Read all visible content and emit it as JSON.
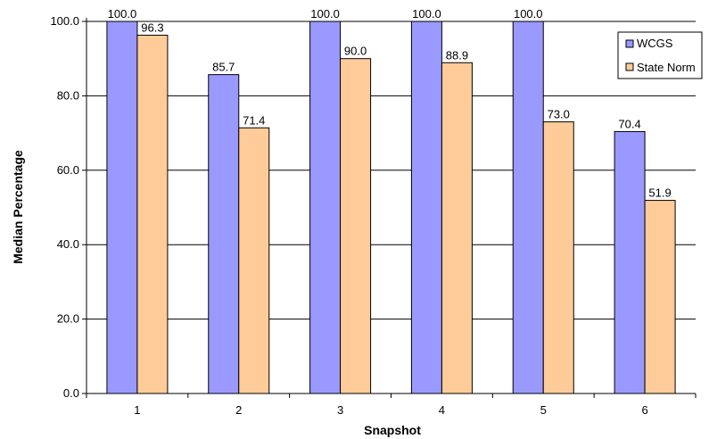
{
  "chart_data": {
    "type": "bar",
    "title": "",
    "xlabel": "Snapshot",
    "ylabel": "Median Percentage",
    "categories": [
      "1",
      "2",
      "3",
      "4",
      "5",
      "6"
    ],
    "series": [
      {
        "name": "WCGS",
        "color": "#9999ff",
        "values": [
          100.0,
          85.7,
          100.0,
          100.0,
          100.0,
          70.4
        ],
        "labels": [
          "100.0",
          "85.7",
          "100.0",
          "100.0",
          "100.0",
          "70.4"
        ]
      },
      {
        "name": "State Norm",
        "color": "#ffcc99",
        "values": [
          96.3,
          71.4,
          90.0,
          88.9,
          73.0,
          51.9
        ],
        "labels": [
          "96.3",
          "71.4",
          "90.0",
          "88.9",
          "73.0",
          "51.9"
        ]
      }
    ],
    "ylim": [
      0,
      100
    ],
    "yticks": [
      "0.0",
      "20.0",
      "40.0",
      "60.0",
      "80.0",
      "100.0"
    ],
    "grid": true,
    "legend_position": "top-right"
  }
}
